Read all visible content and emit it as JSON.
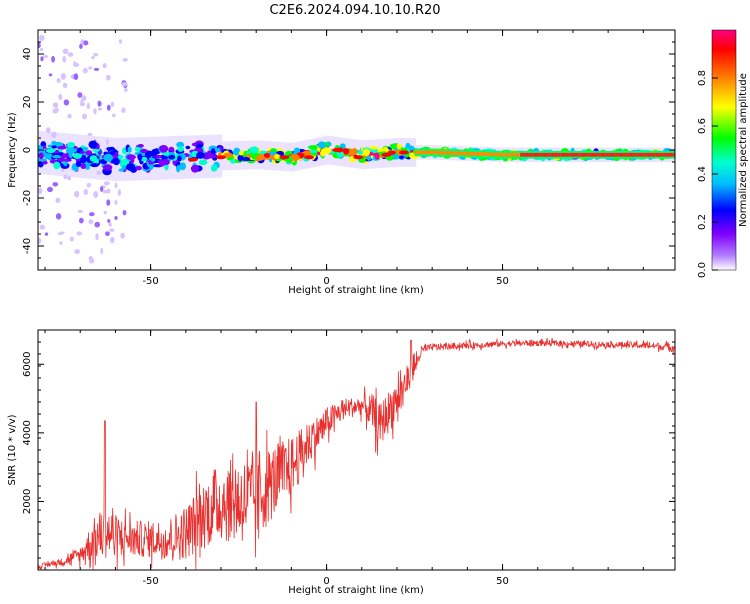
{
  "title": "C2E6.2024.094.10.10.R20",
  "chart_data": [
    {
      "type": "heatmap",
      "xlabel": "Height of straight line (km)",
      "ylabel": "Frequency (Hz)",
      "xlim": [
        -82,
        99
      ],
      "ylim": [
        -50,
        50
      ],
      "xticks": [
        -50,
        0,
        50
      ],
      "yticks": [
        -40,
        -20,
        0,
        20,
        40
      ],
      "colorbar": {
        "label": "Normalized spectral amplitude",
        "range": [
          0,
          1
        ],
        "ticks": [
          "0.0",
          "0.2",
          "0.4",
          "0.6",
          "0.8"
        ],
        "colors": [
          "#ffffff",
          "#b27fff",
          "#7f00ff",
          "#0000ff",
          "#00bfff",
          "#00ffcc",
          "#00ff00",
          "#ffff00",
          "#ff8000",
          "#ff0000",
          "#ff0080"
        ]
      },
      "ridge": {
        "x": [
          -82,
          -60,
          -40,
          -20,
          -10,
          0,
          10,
          20,
          30,
          50,
          99
        ],
        "center_hz": [
          -1,
          -4,
          -3,
          -2,
          -3,
          0,
          -2,
          -1,
          -1,
          -2,
          -2
        ]
      }
    },
    {
      "type": "line",
      "xlabel": "Height of straight line (km)",
      "ylabel": "SNR (10 * v/v)",
      "xlim": [
        -82,
        99
      ],
      "ylim": [
        0,
        7000
      ],
      "xticks": [
        -50,
        0,
        50
      ],
      "yticks": [
        2000,
        4000,
        6000
      ],
      "color": "#e8302e",
      "envelope": {
        "x": [
          -82,
          -75,
          -70,
          -66,
          -63,
          -60,
          -55,
          -50,
          -45,
          -40,
          -35,
          -30,
          -25,
          -20,
          -15,
          -10,
          -5,
          0,
          5,
          10,
          13,
          15,
          20,
          25,
          27,
          30,
          40,
          50,
          60,
          70,
          80,
          90,
          99
        ],
        "mean": [
          100,
          250,
          450,
          900,
          1100,
          1000,
          900,
          900,
          900,
          1100,
          1600,
          2000,
          2000,
          2100,
          2600,
          3000,
          3700,
          4300,
          4700,
          4800,
          4600,
          4200,
          5000,
          5900,
          6400,
          6500,
          6550,
          6600,
          6620,
          6600,
          6580,
          6550,
          6500
        ],
        "spread": [
          70,
          120,
          250,
          700,
          900,
          700,
          600,
          600,
          700,
          900,
          1100,
          1300,
          1400,
          1400,
          1200,
          1000,
          700,
          500,
          350,
          300,
          600,
          700,
          700,
          350,
          150,
          110,
          110,
          100,
          100,
          100,
          100,
          110,
          120
        ]
      },
      "peaks": [
        {
          "x": -63,
          "y": 4350
        },
        {
          "x": -20,
          "y": 4900
        },
        {
          "x": 24,
          "y": 6700
        }
      ]
    }
  ]
}
